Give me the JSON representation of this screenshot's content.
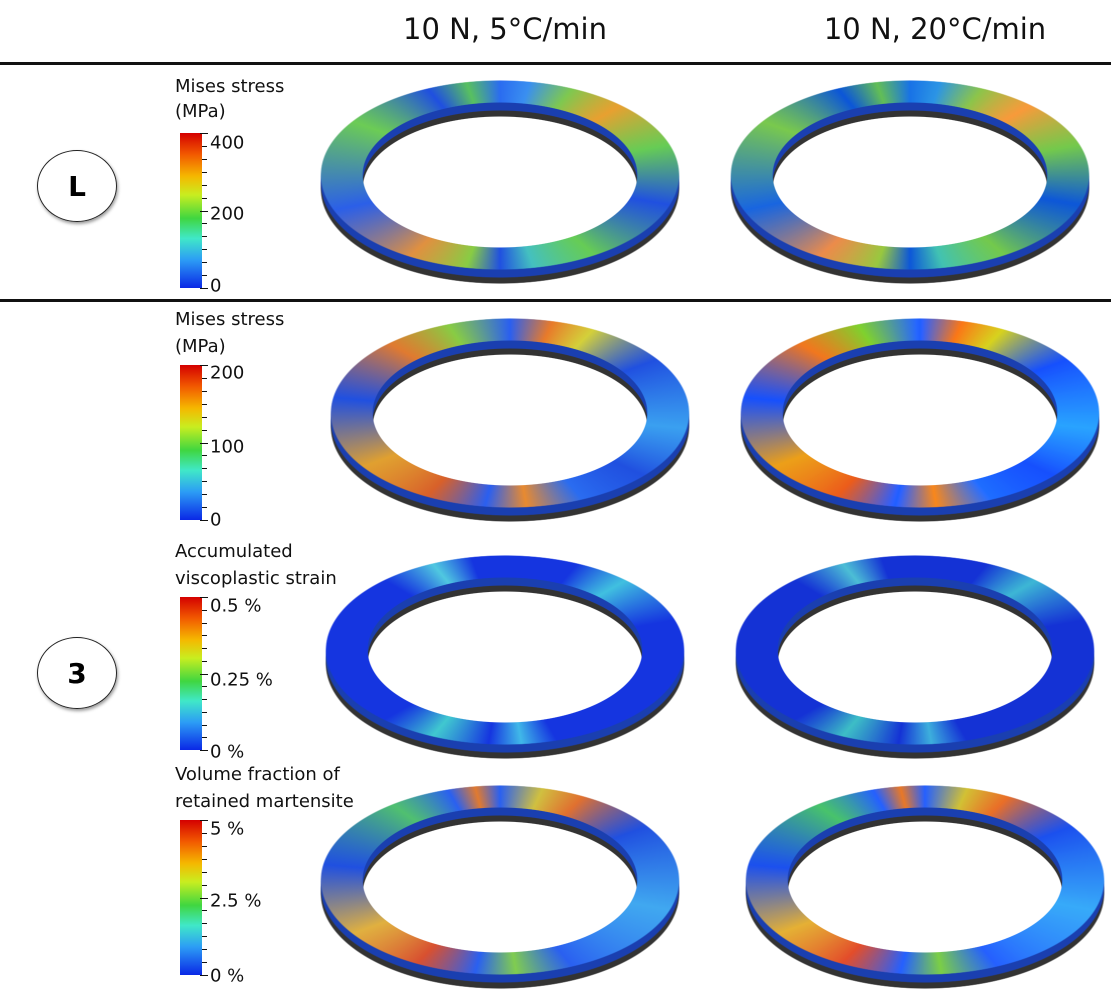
{
  "header": {
    "columns": [
      "10 N, 5°C/min",
      "10 N, 20°C/min"
    ]
  },
  "rows": [
    {
      "label": "L",
      "legends": [
        {
          "title": [
            "Mises stress",
            "(MPa)"
          ],
          "ticks": [
            "400",
            "200",
            "0"
          ]
        }
      ]
    },
    {
      "label": "3",
      "legends": [
        {
          "title": [
            "Mises stress",
            "(MPa)"
          ],
          "ticks": [
            "200",
            "100",
            "0"
          ]
        },
        {
          "title": [
            "Accumulated",
            "viscoplastic strain"
          ],
          "ticks": [
            "0.5 %",
            "0.25 %",
            "0 %"
          ]
        },
        {
          "title": [
            "Volume fraction of",
            "retained martensite"
          ],
          "ticks": [
            "5 %",
            "2.5 %",
            "0 %"
          ]
        }
      ]
    }
  ]
}
